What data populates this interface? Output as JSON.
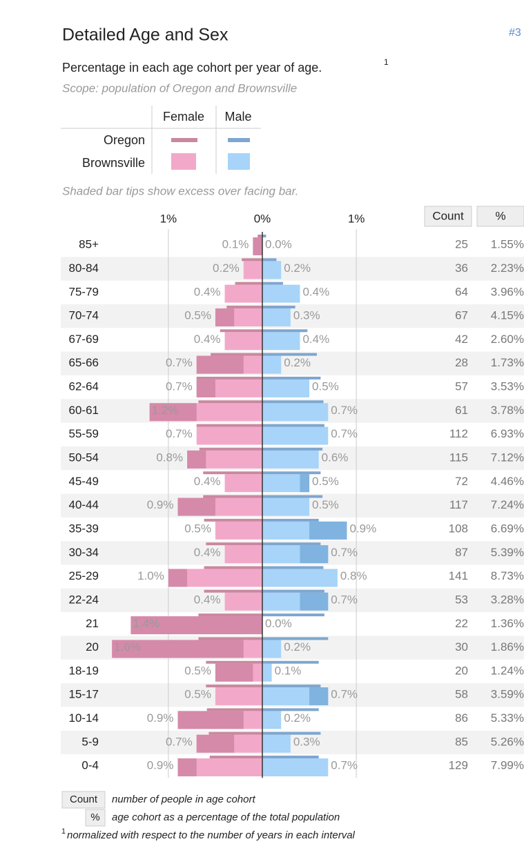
{
  "header": {
    "title": "Detailed Age and Sex",
    "ref": "#3",
    "subtitle": "Percentage in each age cohort per year of age.",
    "footnote_marker": "1",
    "scope": "Scope: population of Oregon and Brownsville",
    "note": "Shaded bar tips show excess over facing bar."
  },
  "legend": {
    "rows": [
      "Oregon",
      "Brownsville"
    ]
  },
  "chart_data": {
    "type": "pyramid",
    "categories": [
      "85+",
      "80-84",
      "75-79",
      "70-74",
      "67-69",
      "65-66",
      "62-64",
      "60-61",
      "55-59",
      "50-54",
      "45-49",
      "40-44",
      "35-39",
      "30-34",
      "25-29",
      "22-24",
      "21",
      "20",
      "18-19",
      "15-17",
      "10-14",
      "5-9",
      "0-4"
    ],
    "xlim": [
      -1.8,
      1.8
    ],
    "xticks": [
      {
        "value": -1,
        "label": "1%"
      },
      {
        "value": 0,
        "label": "0%"
      },
      {
        "value": 1,
        "label": "1%"
      }
    ],
    "series": [
      {
        "name": "Female",
        "color": "#f2a9c9",
        "tip_color": "#d58aaa",
        "oregon_color": "#c9889f",
        "values": [
          0.1,
          0.2,
          0.4,
          0.5,
          0.4,
          0.7,
          0.7,
          1.2,
          0.7,
          0.8,
          0.4,
          0.9,
          0.5,
          0.4,
          1.0,
          0.4,
          1.4,
          1.6,
          0.5,
          0.5,
          0.9,
          0.7,
          0.9
        ],
        "value_labels": [
          "0.1%",
          "0.2%",
          "0.4%",
          "0.5%",
          "0.4%",
          "0.7%",
          "0.7%",
          "1.2%",
          "0.7%",
          "0.8%",
          "0.4%",
          "0.9%",
          "0.5%",
          "0.4%",
          "1.0%",
          "0.4%",
          "1.4%",
          "1.6%",
          "0.5%",
          "0.5%",
          "0.9%",
          "0.7%",
          "0.9%"
        ],
        "oregon": [
          0.05,
          0.22,
          0.29,
          0.38,
          0.45,
          0.55,
          0.7,
          0.68,
          0.7,
          0.67,
          0.63,
          0.63,
          0.62,
          0.6,
          0.62,
          0.62,
          0.68,
          0.68,
          0.6,
          0.6,
          0.59,
          0.57,
          0.56
        ]
      },
      {
        "name": "Male",
        "color": "#a7d4f8",
        "tip_color": "#80b3df",
        "oregon_color": "#7ea6cf",
        "values": [
          0.0,
          0.2,
          0.4,
          0.3,
          0.4,
          0.2,
          0.5,
          0.7,
          0.7,
          0.6,
          0.5,
          0.5,
          0.9,
          0.7,
          0.8,
          0.7,
          0.0,
          0.2,
          0.1,
          0.7,
          0.2,
          0.3,
          0.7
        ],
        "value_labels": [
          "0.0%",
          "0.2%",
          "0.4%",
          "0.3%",
          "0.4%",
          "0.2%",
          "0.5%",
          "0.7%",
          "0.7%",
          "0.6%",
          "0.5%",
          "0.5%",
          "0.9%",
          "0.7%",
          "0.8%",
          "0.7%",
          "0.0%",
          "0.2%",
          "0.1%",
          "0.7%",
          "0.2%",
          "0.3%",
          "0.7%"
        ],
        "oregon": [
          0.04,
          0.15,
          0.22,
          0.35,
          0.48,
          0.58,
          0.62,
          0.65,
          0.66,
          0.64,
          0.62,
          0.64,
          0.6,
          0.62,
          0.65,
          0.66,
          0.66,
          0.7,
          0.6,
          0.62,
          0.6,
          0.62,
          0.6
        ]
      }
    ],
    "table": {
      "headers": [
        "Count",
        "%"
      ],
      "count": [
        25,
        36,
        64,
        67,
        42,
        28,
        57,
        61,
        112,
        115,
        72,
        117,
        108,
        87,
        141,
        53,
        22,
        30,
        20,
        58,
        86,
        85,
        129
      ],
      "percent": [
        "1.55%",
        "2.23%",
        "3.96%",
        "4.15%",
        "2.60%",
        "1.73%",
        "3.53%",
        "3.78%",
        "6.93%",
        "7.12%",
        "4.46%",
        "7.24%",
        "6.69%",
        "5.39%",
        "8.73%",
        "3.28%",
        "1.36%",
        "1.86%",
        "1.24%",
        "3.59%",
        "5.33%",
        "5.26%",
        "7.99%"
      ]
    }
  },
  "footer": {
    "count_desc": "number of people in age cohort",
    "percent_desc": "age cohort as a percentage of the total population",
    "footnote": "normalized with respect to the number of years in each interval"
  }
}
